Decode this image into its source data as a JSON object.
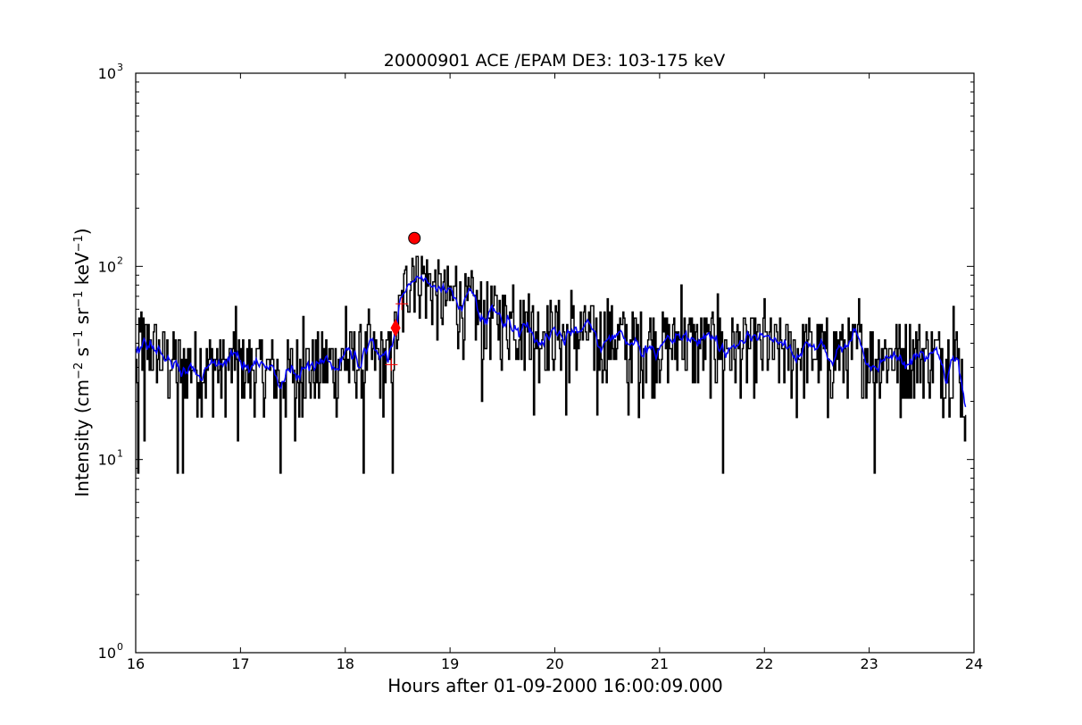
{
  "chart_data": {
    "type": "line",
    "title": "20000901 ACE /EPAM DE3: 103-175 keV",
    "xlabel": "Hours after 01-09-2000 16:00:09.000",
    "ylabel": {
      "text": "Intensity (cm",
      "parts": [
        {
          "t": "Intensity (cm",
          "sup": false
        },
        {
          "t": "−2",
          "sup": true
        },
        {
          "t": " s",
          "sup": false
        },
        {
          "t": "−1",
          "sup": true
        },
        {
          "t": " sr",
          "sup": false
        },
        {
          "t": "−1",
          "sup": true
        },
        {
          "t": " keV",
          "sup": false
        },
        {
          "t": "−1",
          "sup": true
        },
        {
          "t": ")",
          "sup": false
        }
      ]
    },
    "xlim": [
      16,
      24
    ],
    "ylim": [
      1,
      1000
    ],
    "yscale": "log",
    "grid": false,
    "x_ticks": [
      16,
      17,
      18,
      19,
      20,
      21,
      22,
      23,
      24
    ],
    "x_tick_labels": [
      "16",
      "17",
      "18",
      "19",
      "20",
      "21",
      "22",
      "23",
      "24"
    ],
    "y_ticks": [
      {
        "value": 1,
        "base": "10",
        "exp": "0"
      },
      {
        "value": 10,
        "base": "10",
        "exp": "1"
      },
      {
        "value": 100,
        "base": "10",
        "exp": "2"
      },
      {
        "value": 1000,
        "base": "10",
        "exp": "3"
      }
    ],
    "series": [
      {
        "color": "#000000",
        "line_width": 1.5,
        "style": "step",
        "x_start": 16.0,
        "x_end": 23.92,
        "points": 800,
        "description_only": false,
        "keyframes": [
          [
            16.0,
            28
          ],
          [
            16.05,
            40
          ],
          [
            16.3,
            32
          ],
          [
            16.6,
            30
          ],
          [
            17.0,
            30
          ],
          [
            17.4,
            28
          ],
          [
            17.8,
            30
          ],
          [
            18.2,
            33
          ],
          [
            18.42,
            32
          ],
          [
            18.48,
            45
          ],
          [
            18.55,
            65
          ],
          [
            18.62,
            95
          ],
          [
            18.68,
            100
          ],
          [
            18.75,
            85
          ],
          [
            18.9,
            70
          ],
          [
            19.1,
            62
          ],
          [
            19.4,
            55
          ],
          [
            19.7,
            48
          ],
          [
            20.0,
            45
          ],
          [
            20.5,
            42
          ],
          [
            21.0,
            40
          ],
          [
            21.5,
            38
          ],
          [
            22.0,
            37
          ],
          [
            22.5,
            36
          ],
          [
            23.0,
            35
          ],
          [
            23.5,
            35
          ],
          [
            23.85,
            33
          ],
          [
            23.92,
            17
          ]
        ],
        "dips": [
          [
            16.02,
            8.5
          ],
          [
            16.08,
            12.5
          ],
          [
            16.4,
            8.5
          ],
          [
            16.45,
            8.5
          ],
          [
            16.97,
            12.5
          ],
          [
            17.38,
            8.5
          ],
          [
            17.52,
            12.5
          ],
          [
            18.17,
            8.5
          ],
          [
            18.45,
            8.5
          ],
          [
            19.3,
            20
          ],
          [
            19.8,
            17
          ],
          [
            20.1,
            17
          ],
          [
            20.4,
            17
          ],
          [
            20.7,
            17
          ],
          [
            20.8,
            16.5
          ],
          [
            21.6,
            8.5
          ],
          [
            22.3,
            16.5
          ],
          [
            22.6,
            16.5
          ],
          [
            23.05,
            8.5
          ],
          [
            23.3,
            16.5
          ],
          [
            23.7,
            16.5
          ]
        ],
        "spikes": [
          [
            16.05,
            58
          ],
          [
            16.95,
            62
          ],
          [
            17.6,
            55
          ],
          [
            18.0,
            62
          ],
          [
            18.22,
            60
          ],
          [
            18.58,
            100
          ],
          [
            18.64,
            110
          ],
          [
            19.05,
            100
          ],
          [
            19.2,
            95
          ],
          [
            19.6,
            80
          ],
          [
            19.75,
            72
          ],
          [
            20.15,
            75
          ],
          [
            20.5,
            68
          ],
          [
            21.2,
            80
          ],
          [
            21.55,
            72
          ],
          [
            22.0,
            68
          ],
          [
            22.9,
            68
          ],
          [
            23.8,
            62
          ]
        ]
      },
      {
        "color": "#0000ff",
        "line_width": 1.5,
        "style": "line",
        "x_start": 16.0,
        "x_end": 23.92,
        "points": 800,
        "smoothing": 5
      }
    ],
    "markers": [
      {
        "shape": "circle",
        "x": 18.66,
        "y": 140,
        "color": "#ff0000"
      },
      {
        "shape": "diamond",
        "x": 18.48,
        "y": 48,
        "color": "#ff0000"
      },
      {
        "shape": "plus",
        "x": 18.54,
        "y": 64,
        "color": "#ff0000"
      },
      {
        "shape": "plus",
        "x": 18.44,
        "y": 31,
        "color": "#ff0000"
      }
    ]
  }
}
